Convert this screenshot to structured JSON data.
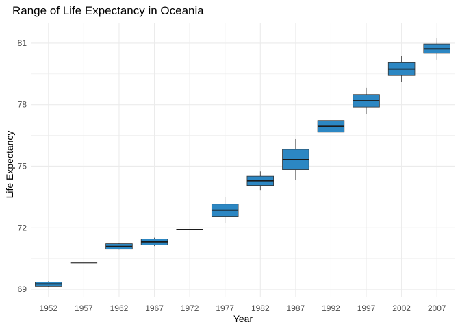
{
  "chart_data": {
    "type": "box",
    "title": "Range of Life Expectancy in Oceania",
    "xlabel": "Year",
    "ylabel": "Life Expectancy",
    "categories": [
      "1952",
      "1957",
      "1962",
      "1967",
      "1972",
      "1977",
      "1982",
      "1987",
      "1992",
      "1997",
      "2002",
      "2007"
    ],
    "boxes": [
      {
        "x": "1952",
        "min": 69.12,
        "q1": 69.155,
        "median": 69.255,
        "q3": 69.355,
        "max": 69.39
      },
      {
        "x": "1957",
        "min": 70.26,
        "q1": 70.275,
        "median": 70.295,
        "q3": 70.315,
        "max": 70.33
      },
      {
        "x": "1962",
        "min": 70.93,
        "q1": 70.95,
        "median": 71.085,
        "q3": 71.22,
        "max": 71.24
      },
      {
        "x": "1967",
        "min": 71.1,
        "q1": 71.16,
        "median": 71.31,
        "q3": 71.46,
        "max": 71.52
      },
      {
        "x": "1972",
        "min": 71.89,
        "q1": 71.895,
        "median": 71.91,
        "q3": 71.925,
        "max": 71.93
      },
      {
        "x": "1977",
        "min": 72.22,
        "q1": 72.555,
        "median": 72.855,
        "q3": 73.155,
        "max": 73.49
      },
      {
        "x": "1982",
        "min": 73.84,
        "q1": 74.06,
        "median": 74.29,
        "q3": 74.51,
        "max": 74.74
      },
      {
        "x": "1987",
        "min": 74.32,
        "q1": 74.83,
        "median": 75.32,
        "q3": 75.82,
        "max": 76.32
      },
      {
        "x": "1992",
        "min": 76.33,
        "q1": 76.66,
        "median": 76.945,
        "q3": 77.23,
        "max": 77.56
      },
      {
        "x": "1997",
        "min": 77.55,
        "q1": 77.885,
        "median": 78.19,
        "q3": 78.5,
        "max": 78.83
      },
      {
        "x": "2002",
        "min": 79.11,
        "q1": 79.42,
        "median": 79.74,
        "q3": 80.05,
        "max": 80.37
      },
      {
        "x": "2007",
        "min": 80.2,
        "q1": 80.5,
        "median": 80.72,
        "q3": 80.96,
        "max": 81.23
      }
    ],
    "yticks": [
      69,
      72,
      75,
      78,
      81
    ],
    "ylim": [
      68.6,
      82.0
    ],
    "grid": true,
    "colors": {
      "box_fill": "#2C87C3",
      "box_stroke": "#333333",
      "grid": "#EBEBEB"
    }
  }
}
